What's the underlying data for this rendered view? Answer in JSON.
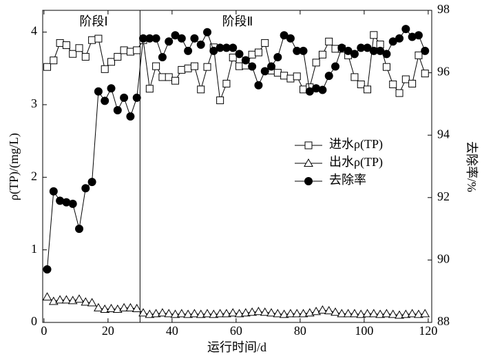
{
  "chart_data": {
    "type": "line",
    "x_label": "运行时间/d",
    "y_label": "ρ(TP)/(mg/L)",
    "y2_label": "去除率/%",
    "stage_labels": [
      "阶段Ⅰ",
      "阶段Ⅱ"
    ],
    "stage_divider": 30,
    "legend": "right",
    "xlim": [
      -0.4,
      121.1
    ],
    "xticks": [
      0,
      20,
      40,
      60,
      80,
      100,
      120
    ],
    "ylim": [
      0,
      4.3
    ],
    "yticks": [
      0,
      1,
      2,
      3,
      4
    ],
    "y2lim": [
      88,
      98
    ],
    "y2ticks": [
      88,
      90,
      92,
      94,
      96,
      98
    ],
    "x": [
      1,
      3,
      5,
      7,
      9,
      11,
      13,
      15,
      17,
      19,
      21,
      23,
      25,
      27,
      29,
      31,
      33,
      35,
      37,
      39,
      41,
      43,
      45,
      47,
      49,
      51,
      53,
      55,
      57,
      59,
      61,
      63,
      65,
      67,
      69,
      71,
      73,
      75,
      77,
      79,
      81,
      83,
      85,
      87,
      89,
      91,
      93,
      95,
      97,
      99,
      101,
      103,
      105,
      107,
      109,
      111,
      113,
      115,
      117,
      119
    ],
    "series": [
      {
        "name": "进水ρ(TP)",
        "color": "#000000",
        "marker": "square",
        "axis": "y",
        "values": [
          3.52,
          3.61,
          3.85,
          3.82,
          3.7,
          3.78,
          3.66,
          3.89,
          3.91,
          3.49,
          3.59,
          3.66,
          3.75,
          3.73,
          3.75,
          3.89,
          3.22,
          3.53,
          3.38,
          3.38,
          3.33,
          3.48,
          3.5,
          3.53,
          3.21,
          3.52,
          3.79,
          3.06,
          3.29,
          3.65,
          3.53,
          3.54,
          3.69,
          3.72,
          3.85,
          3.47,
          3.44,
          3.4,
          3.36,
          3.39,
          3.21,
          3.24,
          3.58,
          3.69,
          3.87,
          3.77,
          3.77,
          3.68,
          3.38,
          3.28,
          3.21,
          3.96,
          3.83,
          3.52,
          3.28,
          3.16,
          3.35,
          3.29,
          3.68,
          3.43
        ]
      },
      {
        "name": "出水ρ(TP)",
        "color": "#000000",
        "marker": "triangle",
        "axis": "y",
        "values": [
          0.35,
          0.29,
          0.31,
          0.31,
          0.3,
          0.32,
          0.28,
          0.27,
          0.2,
          0.18,
          0.19,
          0.18,
          0.2,
          0.2,
          0.19,
          0.13,
          0.11,
          0.12,
          0.13,
          0.12,
          0.11,
          0.12,
          0.11,
          0.12,
          0.11,
          0.12,
          0.11,
          0.12,
          0.12,
          0.13,
          0.12,
          0.13,
          0.14,
          0.15,
          0.14,
          0.13,
          0.12,
          0.11,
          0.12,
          0.12,
          0.12,
          0.13,
          0.15,
          0.17,
          0.16,
          0.14,
          0.12,
          0.12,
          0.12,
          0.11,
          0.12,
          0.12,
          0.11,
          0.12,
          0.11,
          0.1,
          0.11,
          0.12,
          0.11,
          0.12
        ]
      },
      {
        "name": "去除率",
        "color": "#000000",
        "marker": "circle",
        "axis": "y2",
        "values": [
          89.7,
          92.2,
          91.9,
          91.85,
          91.8,
          91.0,
          92.3,
          92.5,
          95.4,
          95.1,
          95.5,
          94.8,
          95.2,
          94.6,
          95.2,
          97.1,
          97.1,
          97.1,
          96.5,
          97.0,
          97.2,
          97.1,
          96.7,
          97.1,
          96.9,
          97.3,
          96.7,
          96.8,
          96.8,
          96.8,
          96.6,
          96.4,
          96.2,
          95.6,
          96.05,
          96.2,
          96.5,
          97.2,
          97.1,
          96.7,
          96.7,
          95.4,
          95.5,
          95.45,
          95.9,
          96.2,
          96.8,
          96.7,
          96.6,
          96.8,
          96.8,
          96.7,
          96.7,
          96.6,
          97.0,
          97.1,
          97.4,
          97.15,
          97.2,
          96.7
        ]
      }
    ]
  }
}
